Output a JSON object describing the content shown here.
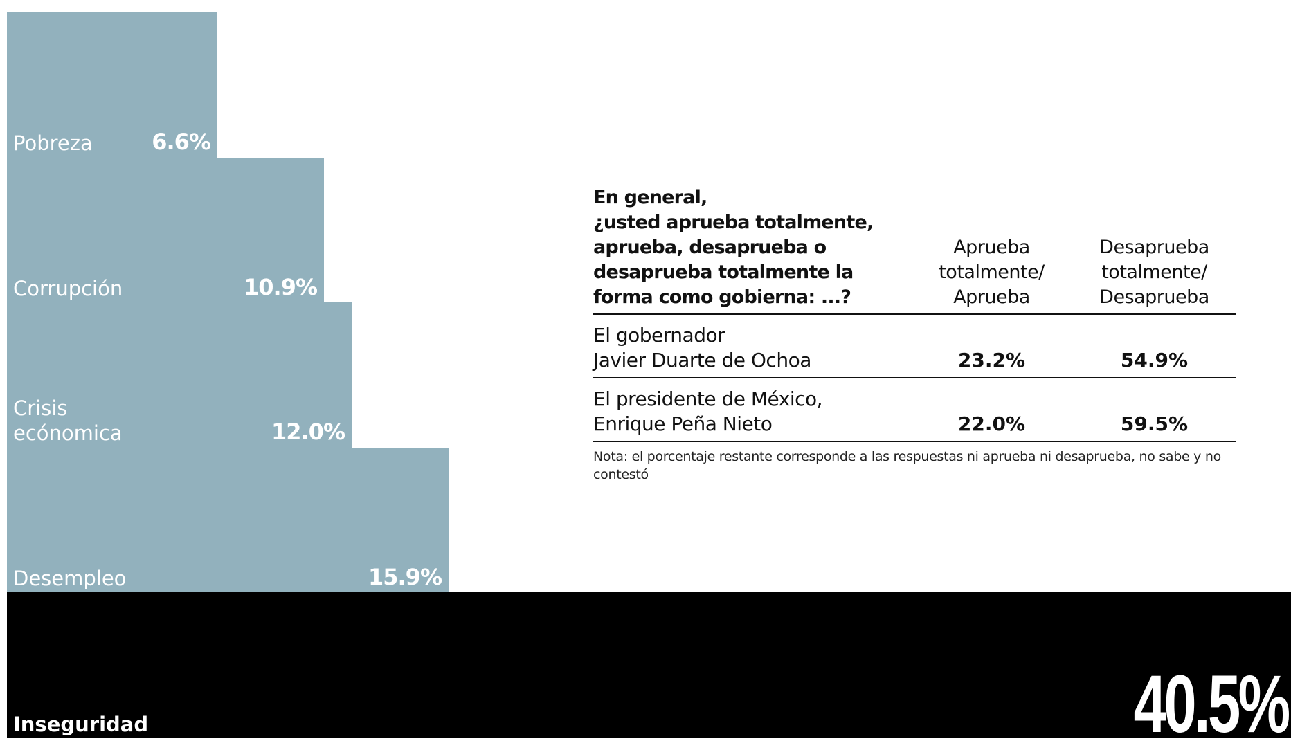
{
  "chart_data": [
    {
      "type": "bar",
      "orientation": "horizontal",
      "categories": [
        "Pobreza",
        "Corrupción",
        "Crisis\necónomica",
        "Desempleo",
        "Inseguridad"
      ],
      "values": [
        6.6,
        10.9,
        12.0,
        15.9,
        40.5
      ],
      "value_labels": [
        "6.6%",
        "10.9%",
        "12.0%",
        "15.9%",
        "40.5%"
      ],
      "highlight_category": "Inseguridad",
      "grid": false,
      "legend": "none"
    },
    {
      "type": "table",
      "question": "En general,\n¿usted aprueba totalmente,\naprueba, desaprueba o\ndesaprueba totalmente la\nforma como gobierna: ...?",
      "columns": [
        "Aprueba\ntotalmente/\nAprueba",
        "Desaprueba\ntotalmente/\nDesaprueba"
      ],
      "rows": [
        {
          "label": "El gobernador\nJavier Duarte de Ochoa",
          "values": [
            "23.2%",
            "54.9%"
          ]
        },
        {
          "label": "El presidente de México,\nEnrique Peña Nieto",
          "values": [
            "22.0%",
            "59.5%"
          ]
        }
      ],
      "note": "Nota: el porcentaje restante corresponde a las respuestas ni aprueba ni desaprueba, no sabe y no contestó"
    }
  ],
  "colors": {
    "bar": "#92b1bd",
    "highlight_bar": "#000000",
    "bar_text": "#ffffff",
    "table_text": "#111111"
  }
}
